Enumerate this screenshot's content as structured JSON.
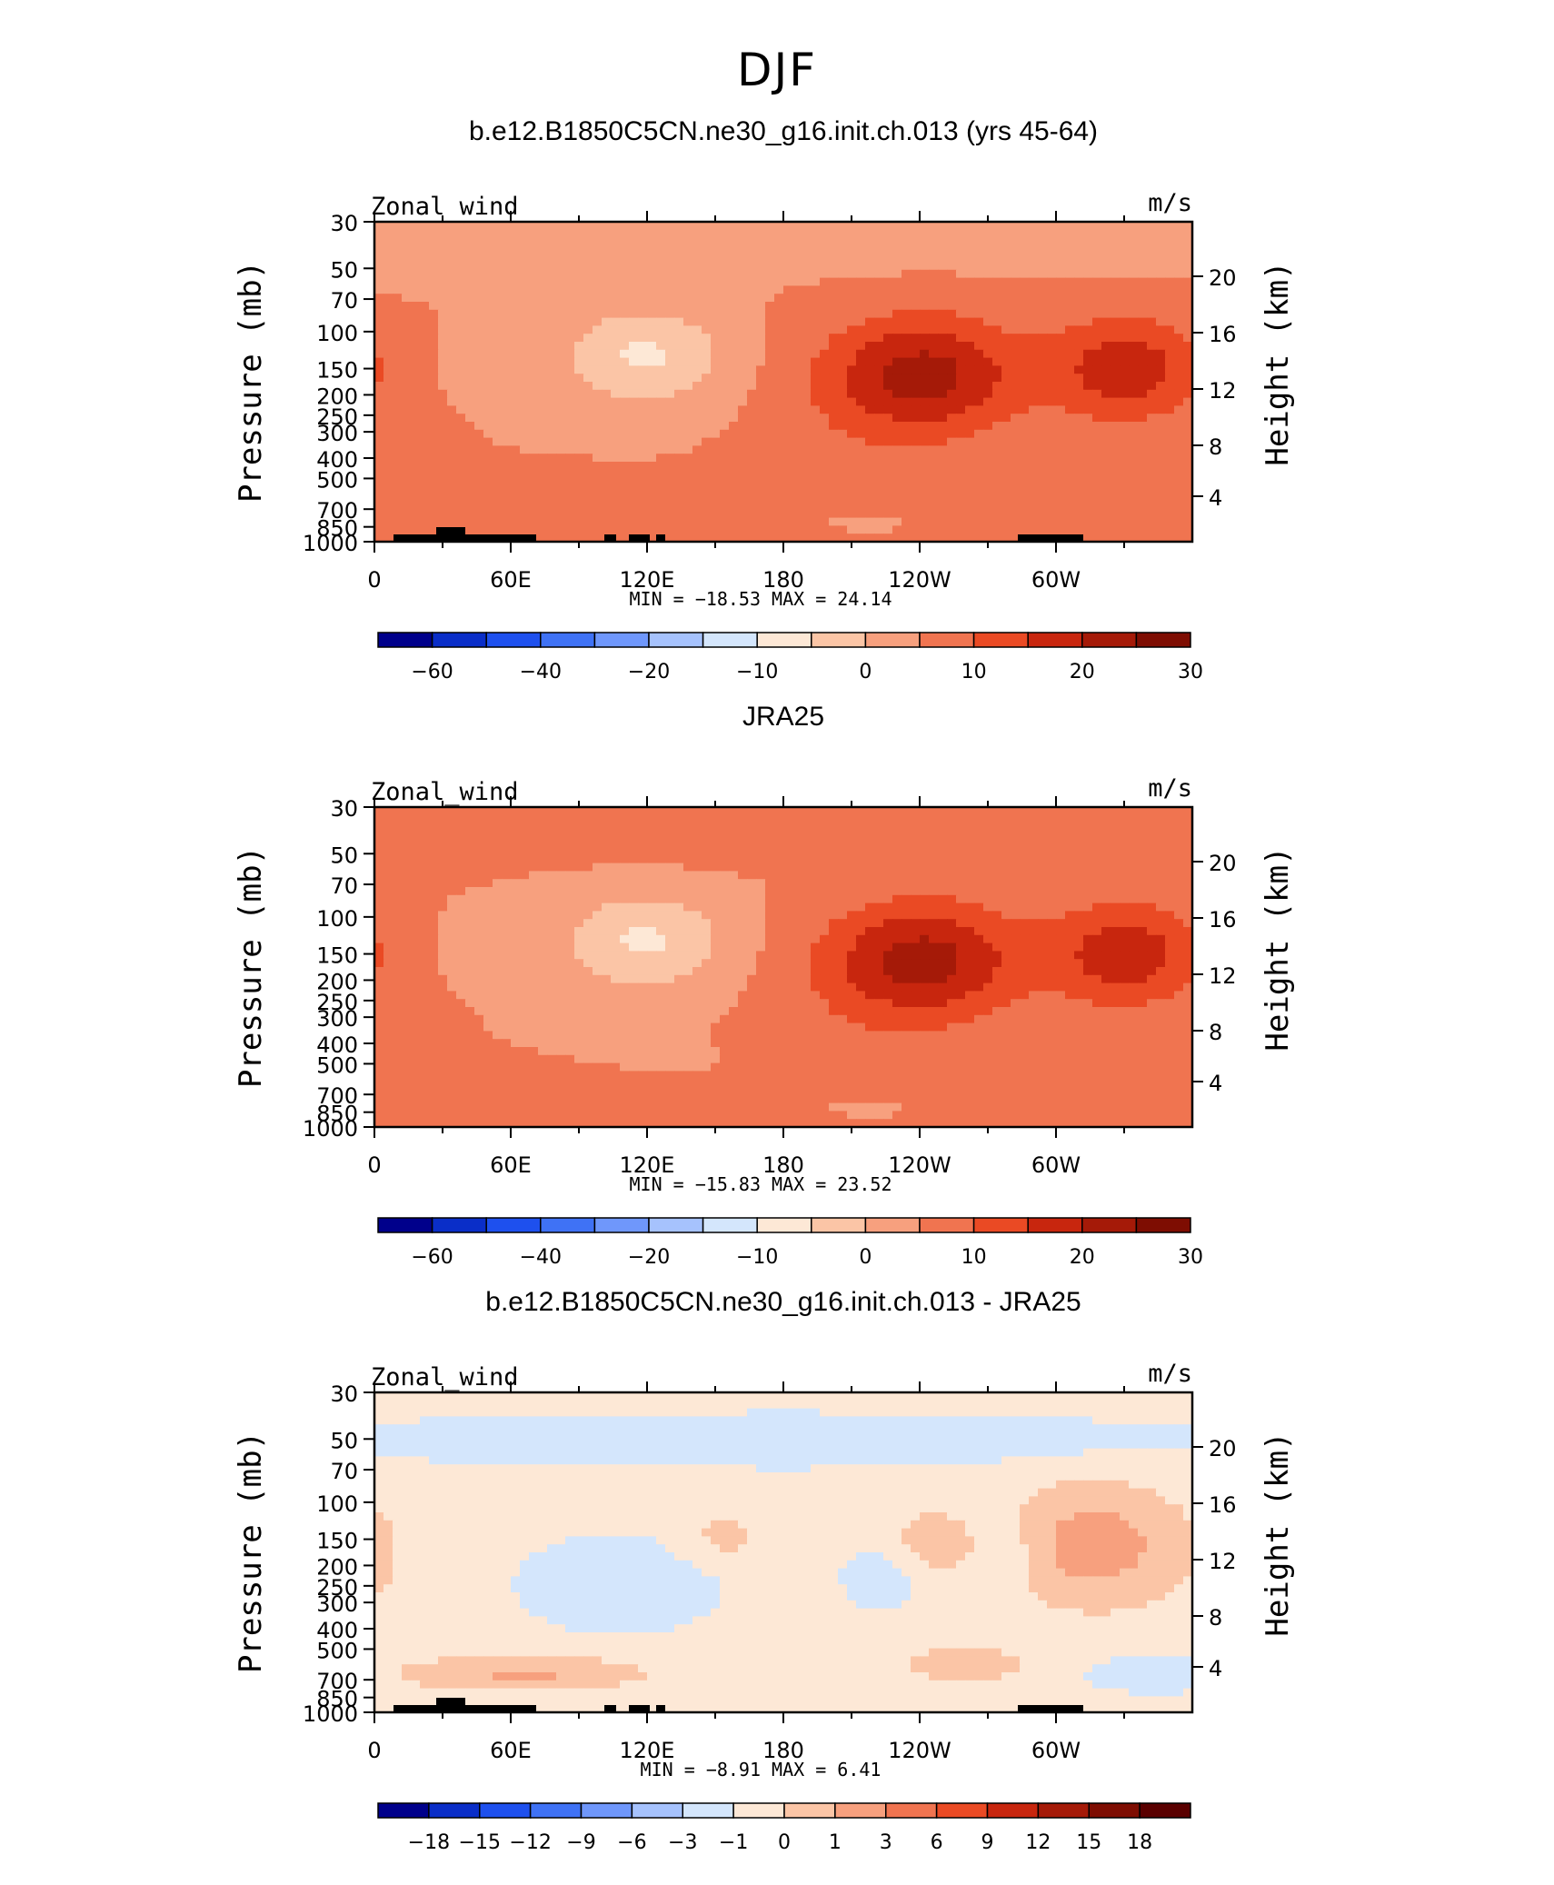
{
  "main_title": "DJF",
  "chart_data": [
    {
      "type": "contour",
      "title": "b.e12.B1850C5CN.ne30_g16.init.ch.013 (yrs 45-64)",
      "left_label": "Zonal wind",
      "units": "m/s",
      "ylabel": "Pressure (mb)",
      "ylabel_right": "Height (km)",
      "pressure_ticks": [
        "30",
        "50",
        "70",
        "100",
        "150",
        "200",
        "250",
        "300",
        "400",
        "500",
        "700",
        "850",
        "1000"
      ],
      "height_ticks": [
        "20",
        "16",
        "12",
        "8",
        "4"
      ],
      "x_ticks": [
        "0",
        "60E",
        "120E",
        "180",
        "120W",
        "60W"
      ],
      "min_max": "MIN = −18.53   MAX =   24.14",
      "colorbar_labels": [
        "−60",
        "−40",
        "−20",
        "−10",
        "0",
        "10",
        "20",
        "30"
      ],
      "colorbar_colors": [
        "#00008b",
        "#0a2ec8",
        "#1e50ee",
        "#3f72f5",
        "#6f97fb",
        "#a6c2fd",
        "#d4e6fc",
        "#fde8d6",
        "#fbc5a6",
        "#f7a07e",
        "#f07450",
        "#ea4a24",
        "#c8260e",
        "#a51a08",
        "#7e0d02"
      ]
    },
    {
      "type": "contour",
      "title": "JRA25",
      "left_label": "Zonal_wind",
      "units": "m/s",
      "ylabel": "Pressure (mb)",
      "ylabel_right": "Height (km)",
      "pressure_ticks": [
        "30",
        "50",
        "70",
        "100",
        "150",
        "200",
        "250",
        "300",
        "400",
        "500",
        "700",
        "850",
        "1000"
      ],
      "height_ticks": [
        "20",
        "16",
        "12",
        "8",
        "4"
      ],
      "x_ticks": [
        "0",
        "60E",
        "120E",
        "180",
        "120W",
        "60W"
      ],
      "min_max": "MIN = −15.83   MAX =   23.52",
      "colorbar_labels": [
        "−60",
        "−40",
        "−20",
        "−10",
        "0",
        "10",
        "20",
        "30"
      ],
      "colorbar_colors": [
        "#00008b",
        "#0a2ec8",
        "#1e50ee",
        "#3f72f5",
        "#6f97fb",
        "#a6c2fd",
        "#d4e6fc",
        "#fde8d6",
        "#fbc5a6",
        "#f7a07e",
        "#f07450",
        "#ea4a24",
        "#c8260e",
        "#a51a08",
        "#7e0d02"
      ]
    },
    {
      "type": "contour",
      "title": "b.e12.B1850C5CN.ne30_g16.init.ch.013 - JRA25",
      "left_label": "Zonal_wind",
      "units": "m/s",
      "ylabel": "Pressure (mb)",
      "ylabel_right": "Height (km)",
      "pressure_ticks": [
        "30",
        "50",
        "70",
        "100",
        "150",
        "200",
        "250",
        "300",
        "400",
        "500",
        "700",
        "850",
        "1000"
      ],
      "height_ticks": [
        "20",
        "16",
        "12",
        "8",
        "4"
      ],
      "x_ticks": [
        "0",
        "60E",
        "120E",
        "180",
        "120W",
        "60W"
      ],
      "min_max": "MIN =    −8.91   MAX =     6.41",
      "colorbar_labels": [
        "−18",
        "−15",
        "−12",
        "−9",
        "−6",
        "−3",
        "−1",
        "0",
        "1",
        "3",
        "6",
        "9",
        "12",
        "15",
        "18"
      ],
      "colorbar_colors": [
        "#00008b",
        "#0a2ec8",
        "#1e50ee",
        "#3f72f5",
        "#6f97fb",
        "#a6c2fd",
        "#d4e6fc",
        "#fde8d6",
        "#fbc5a6",
        "#f7a07e",
        "#f07450",
        "#ea4a24",
        "#c8260e",
        "#a51a08",
        "#7e0d02",
        "#5a0000"
      ]
    }
  ]
}
